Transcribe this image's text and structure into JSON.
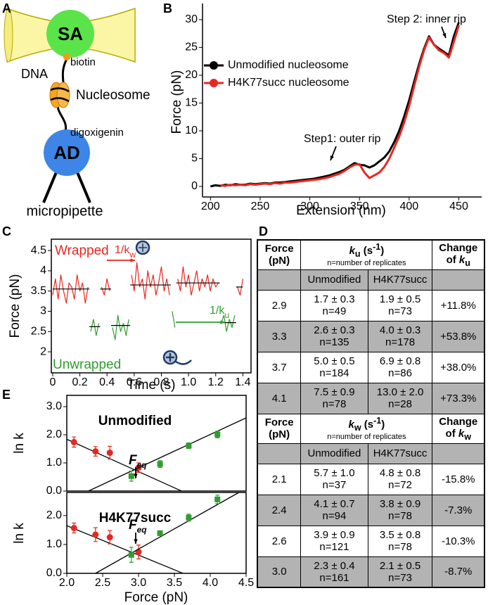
{
  "diagram": {
    "panel": "A",
    "labels": {
      "sa": "SA",
      "biotin": "biotin",
      "dna": "DNA",
      "nucleosome": "Nucleosome",
      "digoxigenin": "digoxigenin",
      "ad": "AD",
      "micropipette": "micropipette"
    }
  },
  "chart_data": [
    {
      "type": "line",
      "panel": "B",
      "xlabel": "Extension (nm)",
      "ylabel": "Force (pN)",
      "legend": "upper left",
      "xlim": [
        192,
        473
      ],
      "ylim": [
        -1.9,
        32.9
      ],
      "xticks": [
        200,
        250,
        300,
        350,
        400,
        450
      ],
      "yticks": [
        0,
        5,
        10,
        15,
        20,
        25,
        30
      ],
      "x": [
        200,
        205,
        210,
        215,
        220,
        225,
        230,
        235,
        240,
        245,
        250,
        255,
        260,
        265,
        270,
        275,
        280,
        285,
        290,
        295,
        300,
        305,
        310,
        315,
        320,
        325,
        330,
        335,
        340,
        345,
        350,
        355,
        360,
        365,
        370,
        375,
        380,
        385,
        390,
        395,
        400,
        405,
        410,
        415,
        420,
        425,
        430,
        435,
        440,
        445,
        450
      ],
      "series": [
        {
          "name": "Unmodified nucleosome",
          "color": "#000000",
          "values": [
            0.0,
            0.2,
            0.1,
            0.3,
            0.2,
            0.4,
            0.3,
            0.3,
            0.5,
            0.4,
            0.5,
            0.6,
            0.5,
            0.7,
            0.7,
            0.8,
            0.9,
            1.0,
            1.1,
            1.2,
            1.3,
            1.4,
            1.6,
            1.8,
            2.0,
            2.3,
            2.6,
            3.0,
            3.6,
            4.2,
            3.9,
            3.8,
            3.4,
            3.8,
            4.5,
            5.2,
            6.3,
            8.0,
            10.0,
            12.6,
            15.5,
            18.8,
            22.0,
            24.8,
            27.0,
            25.5,
            24.8,
            24.2,
            23.6,
            27.0,
            29.5
          ]
        },
        {
          "name": "H4K77succ nucleosome",
          "color": "#e8271f",
          "values": [
            null,
            null,
            0.2,
            0.1,
            0.3,
            0.2,
            0.3,
            0.2,
            0.4,
            0.3,
            0.4,
            0.5,
            0.4,
            0.6,
            0.5,
            0.7,
            0.7,
            0.8,
            0.9,
            1.0,
            1.1,
            1.2,
            1.3,
            1.5,
            1.7,
            2.0,
            2.3,
            2.8,
            3.4,
            3.9,
            4.0,
            2.5,
            1.5,
            2.0,
            2.5,
            3.5,
            5.0,
            7.0,
            9.0,
            11.5,
            14.5,
            18.0,
            21.5,
            24.5,
            26.8,
            25.5,
            24.5,
            24.0,
            23.2,
            26.0,
            29.0
          ]
        }
      ],
      "annotations": [
        {
          "text": "Step 2: inner rip"
        },
        {
          "text": "Step1: outer rip"
        }
      ]
    },
    {
      "type": "line",
      "panel": "C",
      "xlabel": "Time (s)",
      "ylabel": "Force (pN)",
      "xlim": [
        -0.01,
        1.46
      ],
      "ylim": [
        1.48,
        4.78
      ],
      "xticks": [
        0,
        0.2,
        0.4,
        0.6,
        0.8,
        {
          "value": 1,
          "label": "1.0"
        },
        1.2,
        1.4
      ],
      "yticks": [
        2,
        2.5,
        3,
        3.5,
        4,
        4.5
      ],
      "x": [
        0,
        0.02,
        0.04,
        0.06,
        0.08,
        0.1,
        0.12,
        0.14,
        0.16,
        0.18,
        0.2,
        0.22,
        0.24,
        0.26,
        0.28,
        0.3,
        0.32,
        0.34,
        0.36,
        0.38,
        0.4,
        0.42,
        0.44,
        0.46,
        0.48,
        0.5,
        0.52,
        0.54,
        0.56,
        0.58,
        0.6,
        0.62,
        0.64,
        0.66,
        0.68,
        0.7,
        0.72,
        0.74,
        0.76,
        0.78,
        0.8,
        0.82,
        0.84,
        0.86,
        0.88,
        0.9,
        0.92,
        0.94,
        0.96,
        0.98,
        1,
        1.02,
        1.04,
        1.06,
        1.08,
        1.1,
        1.12,
        1.14,
        1.16,
        1.18,
        1.2,
        1.22,
        1.24,
        1.26,
        1.28,
        1.3,
        1.32,
        1.34,
        1.36,
        1.38,
        1.4
      ],
      "series": [
        {
          "name": "Wrapped",
          "color": "#e8271f",
          "values": [
            3.4,
            3.8,
            3.3,
            3.9,
            3.5,
            3.2,
            3.7,
            3.6,
            3.3,
            3.9,
            3.5,
            3.7,
            3.2,
            3.6,
            null,
            null,
            null,
            null,
            3.6,
            3.4,
            3.8,
            3.5,
            null,
            null,
            null,
            null,
            null,
            null,
            null,
            3.9,
            3.5,
            4.2,
            3.6,
            3.8,
            3.3,
            4.0,
            3.6,
            3.9,
            3.4,
            3.7,
            4.1,
            3.5,
            3.8,
            3.4,
            null,
            null,
            3.8,
            3.5,
            4.1,
            3.6,
            3.9,
            3.4,
            3.7,
            4.0,
            3.5,
            3.8,
            3.6,
            3.9,
            3.5,
            3.8,
            3.6,
            3.7,
            null,
            null,
            null,
            null,
            null,
            null,
            3.6,
            3.4,
            3.8
          ]
        },
        {
          "name": "Unwrapped",
          "color": "#2e9e2e",
          "values": [
            null,
            null,
            null,
            null,
            null,
            null,
            null,
            null,
            null,
            null,
            null,
            null,
            null,
            null,
            2.5,
            2.8,
            2.4,
            2.7,
            null,
            null,
            null,
            null,
            2.6,
            2.3,
            2.9,
            2.5,
            2.7,
            2.4,
            2.8,
            null,
            null,
            null,
            null,
            null,
            null,
            null,
            null,
            null,
            null,
            null,
            null,
            null,
            null,
            null,
            3.0,
            2.6,
            null,
            null,
            null,
            null,
            null,
            null,
            null,
            null,
            null,
            null,
            null,
            null,
            null,
            null,
            null,
            null,
            2.7,
            2.9,
            2.5,
            2.8,
            2.6,
            2.9,
            null,
            null,
            null
          ]
        }
      ],
      "levels": [
        {
          "start": 0,
          "end": 0.27,
          "value": 3.55
        },
        {
          "start": 0.27,
          "end": 0.35,
          "value": 2.62
        },
        {
          "start": 0.35,
          "end": 0.43,
          "value": 3.55
        },
        {
          "start": 0.43,
          "end": 0.57,
          "value": 2.65
        },
        {
          "start": 0.57,
          "end": 0.87,
          "value": 3.65
        },
        {
          "start": 0.91,
          "end": 1.23,
          "value": 3.7
        },
        {
          "start": 1.23,
          "end": 1.35,
          "value": 2.72
        },
        {
          "start": 1.35,
          "end": 1.4,
          "value": 3.6
        }
      ],
      "annotations": [
        {
          "text": "1/k",
          "subscript": "w",
          "color": "#e8271f"
        },
        {
          "text": "1/k",
          "subscript": "u",
          "color": "#2e9e2e"
        }
      ]
    },
    {
      "type": "scatter",
      "panel": "E",
      "title": "Unmodified",
      "ylabel": "ln k",
      "xlim": [
        2,
        4.5
      ],
      "ylim": [
        0,
        3.4
      ],
      "yticks": [
        {
          "value": 0,
          "label": "0.0"
        },
        {
          "value": 1,
          "label": "1.0"
        },
        {
          "value": 2,
          "label": "2.0"
        },
        {
          "value": 3,
          "label": "3.0"
        }
      ],
      "series": [
        {
          "color": "#e8271f",
          "marker": "circle",
          "x": [
            2.1,
            2.4,
            2.6,
            3.0
          ],
          "values": [
            1.74,
            1.41,
            1.36,
            0.83
          ],
          "errors": [
            0.18,
            0.17,
            0.23,
            0.17
          ],
          "fit": {
            "x": [
              2.0,
              3.6
            ],
            "y": [
              1.84,
              0
            ]
          }
        },
        {
          "color": "#2e9e2e",
          "marker": "square",
          "x": [
            2.9,
            3.3,
            3.7,
            4.1
          ],
          "values": [
            0.53,
            0.96,
            1.61,
            2.01
          ],
          "errors": [
            0.18,
            0.12,
            0.1,
            0.12
          ],
          "fit": {
            "x": [
              2.3,
              4.5
            ],
            "y": [
              0,
              2.6
            ]
          }
        }
      ],
      "annotations": [
        {
          "text": "F",
          "subscript": "eq"
        }
      ]
    },
    {
      "type": "scatter",
      "title": "H4K77succ",
      "ylabel": "ln k",
      "xlabel": "Force (pN)",
      "xlim": [
        2,
        4.5
      ],
      "ylim": [
        0,
        2.8
      ],
      "xticks": [
        {
          "value": 2,
          "label": "2.0"
        },
        2.5,
        {
          "value": 3,
          "label": "3.0"
        },
        3.5,
        {
          "value": 4,
          "label": "4.0"
        },
        4.5
      ],
      "yticks": [
        {
          "value": 0,
          "label": "0.0"
        },
        {
          "value": 1,
          "label": "1.0"
        },
        {
          "value": 2,
          "label": "2.0"
        }
      ],
      "series": [
        {
          "color": "#e8271f",
          "marker": "circle",
          "x": [
            2.1,
            2.4,
            2.6,
            3.0
          ],
          "values": [
            1.57,
            1.34,
            1.25,
            0.74
          ],
          "errors": [
            0.17,
            0.24,
            0.23,
            0.24
          ],
          "fit": {
            "x": [
              2.0,
              3.62
            ],
            "y": [
              1.65,
              0
            ]
          }
        },
        {
          "color": "#2e9e2e",
          "marker": "square",
          "x": [
            2.9,
            3.3,
            3.7,
            4.1
          ],
          "values": [
            0.64,
            1.39,
            1.93,
            2.56
          ],
          "errors": [
            0.26,
            0.08,
            0.12,
            0.15
          ],
          "fit": {
            "x": [
              2.4,
              4.4
            ],
            "y": [
              0,
              2.8
            ]
          }
        }
      ],
      "annotations": [
        {
          "text": "F",
          "subscript": "eq"
        }
      ]
    }
  ],
  "table": {
    "panel": "D",
    "sections": [
      {
        "force_header": "Force (pN)",
        "rate_header": [
          "k",
          "u",
          " (s",
          "-1",
          ")"
        ],
        "rate_note": "n=number of replicates",
        "change_header": [
          "Change of ",
          "k",
          "u"
        ],
        "columns": [
          "Unmodified",
          "H4K77succ"
        ],
        "rows": [
          [
            "2.9",
            "1.7 ± 0.3",
            "n=49",
            "1.9 ± 0.5",
            "n=73",
            "+11.8%"
          ],
          [
            "3.3",
            "2.6 ± 0.3",
            "n=135",
            "4.0 ± 0.3",
            "n=178",
            "+53.8%"
          ],
          [
            "3.7",
            "5.0 ± 0.5",
            "n=184",
            "6.9 ± 0.8",
            "n=86",
            "+38.0%"
          ],
          [
            "4.1",
            "7.5 ± 0.9",
            "n=78",
            "13.0 ± 2.0",
            "n=28",
            "+73.3%"
          ]
        ]
      },
      {
        "force_header": "Force (pN)",
        "rate_header": [
          "k",
          "w",
          " (s",
          "-1",
          ")"
        ],
        "rate_note": "n=number of replicates",
        "change_header": [
          "Change of ",
          "k",
          "w"
        ],
        "columns": [
          "Unmodified",
          "H4K77succ"
        ],
        "rows": [
          [
            "2.1",
            "5.7 ± 1.0",
            "n=37",
            "4.8 ± 0.8",
            "n=72",
            "-15.8%"
          ],
          [
            "2.4",
            "4.1 ± 0.7",
            "n=94",
            "3.8 ± 0.9",
            "n=78",
            "-7.3%"
          ],
          [
            "2.6",
            "3.9 ± 0.9",
            "n=121",
            "3.5 ± 0.8",
            "n=78",
            "-10.3%"
          ],
          [
            "3.0",
            "2.3 ± 0.4",
            "n=161",
            "2.1 ± 0.5",
            "n=73",
            "-8.7%"
          ]
        ]
      }
    ]
  }
}
